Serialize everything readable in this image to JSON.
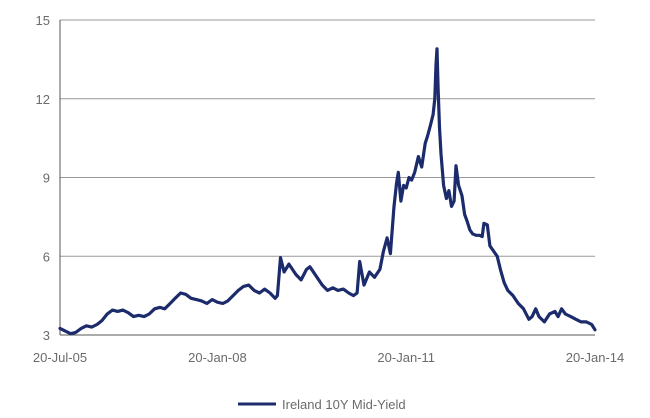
{
  "chart_data": {
    "type": "line",
    "title": "",
    "xlabel": "",
    "ylabel": "",
    "xlim": [
      "2005-07-20",
      "2014-01-20"
    ],
    "ylim": [
      3,
      15
    ],
    "yticks": [
      3,
      6,
      9,
      12,
      15
    ],
    "y_tick_labels": [
      "3",
      "6",
      "9",
      "12",
      "15"
    ],
    "x_tick_labels": [
      {
        "date": "2005-07-20",
        "label": "20-Jul-05"
      },
      {
        "date": "2008-01-20",
        "label": "20-Jan-08"
      },
      {
        "date": "2011-01-20",
        "label": "20-Jan-11"
      },
      {
        "date": "2014-01-20",
        "label": "20-Jan-14"
      }
    ],
    "grid": "horizontal",
    "legend": "bottom",
    "series": [
      {
        "name": "Ireland 10Y Mid-Yield",
        "color": "#1c2b6b",
        "points": [
          [
            "2005-07-20",
            3.25
          ],
          [
            "2005-08-20",
            3.15
          ],
          [
            "2005-09-20",
            3.05
          ],
          [
            "2005-10-20",
            3.1
          ],
          [
            "2005-11-20",
            3.25
          ],
          [
            "2005-12-20",
            3.35
          ],
          [
            "2006-01-20",
            3.3
          ],
          [
            "2006-02-20",
            3.4
          ],
          [
            "2006-03-20",
            3.55
          ],
          [
            "2006-04-20",
            3.8
          ],
          [
            "2006-05-20",
            3.95
          ],
          [
            "2006-06-20",
            3.9
          ],
          [
            "2006-07-20",
            3.95
          ],
          [
            "2006-08-20",
            3.85
          ],
          [
            "2006-09-20",
            3.7
          ],
          [
            "2006-10-20",
            3.75
          ],
          [
            "2006-11-20",
            3.7
          ],
          [
            "2006-12-20",
            3.8
          ],
          [
            "2007-01-20",
            4.0
          ],
          [
            "2007-02-20",
            4.05
          ],
          [
            "2007-03-20",
            4.0
          ],
          [
            "2007-04-20",
            4.2
          ],
          [
            "2007-05-20",
            4.4
          ],
          [
            "2007-06-20",
            4.6
          ],
          [
            "2007-07-20",
            4.55
          ],
          [
            "2007-08-20",
            4.4
          ],
          [
            "2007-09-20",
            4.35
          ],
          [
            "2007-10-20",
            4.3
          ],
          [
            "2007-11-20",
            4.2
          ],
          [
            "2007-12-20",
            4.35
          ],
          [
            "2008-01-20",
            4.25
          ],
          [
            "2008-02-20",
            4.2
          ],
          [
            "2008-03-20",
            4.3
          ],
          [
            "2008-04-20",
            4.5
          ],
          [
            "2008-05-20",
            4.7
          ],
          [
            "2008-06-20",
            4.85
          ],
          [
            "2008-07-20",
            4.9
          ],
          [
            "2008-08-20",
            4.7
          ],
          [
            "2008-09-20",
            4.6
          ],
          [
            "2008-10-20",
            4.75
          ],
          [
            "2008-11-20",
            4.6
          ],
          [
            "2008-12-20",
            4.4
          ],
          [
            "2009-01-02",
            4.5
          ],
          [
            "2009-01-20",
            5.95
          ],
          [
            "2009-02-10",
            5.4
          ],
          [
            "2009-03-10",
            5.7
          ],
          [
            "2009-04-20",
            5.3
          ],
          [
            "2009-05-20",
            5.1
          ],
          [
            "2009-06-20",
            5.5
          ],
          [
            "2009-07-10",
            5.6
          ],
          [
            "2009-08-20",
            5.2
          ],
          [
            "2009-09-20",
            4.9
          ],
          [
            "2009-10-20",
            4.7
          ],
          [
            "2009-11-20",
            4.8
          ],
          [
            "2009-12-20",
            4.7
          ],
          [
            "2010-01-20",
            4.75
          ],
          [
            "2010-02-20",
            4.6
          ],
          [
            "2010-03-20",
            4.5
          ],
          [
            "2010-04-10",
            4.6
          ],
          [
            "2010-04-25",
            5.8
          ],
          [
            "2010-05-20",
            4.9
          ],
          [
            "2010-06-20",
            5.4
          ],
          [
            "2010-07-20",
            5.2
          ],
          [
            "2010-08-20",
            5.5
          ],
          [
            "2010-09-10",
            6.2
          ],
          [
            "2010-10-01",
            6.7
          ],
          [
            "2010-10-20",
            6.1
          ],
          [
            "2010-11-10",
            7.9
          ],
          [
            "2010-11-25",
            8.8
          ],
          [
            "2010-12-05",
            9.2
          ],
          [
            "2010-12-20",
            8.1
          ],
          [
            "2011-01-05",
            8.7
          ],
          [
            "2011-01-20",
            8.6
          ],
          [
            "2011-02-05",
            9.0
          ],
          [
            "2011-02-20",
            8.9
          ],
          [
            "2011-03-10",
            9.2
          ],
          [
            "2011-04-01",
            9.8
          ],
          [
            "2011-04-20",
            9.4
          ],
          [
            "2011-05-10",
            10.3
          ],
          [
            "2011-05-25",
            10.6
          ],
          [
            "2011-06-10",
            11.0
          ],
          [
            "2011-06-25",
            11.4
          ],
          [
            "2011-07-05",
            12.0
          ],
          [
            "2011-07-12",
            13.3
          ],
          [
            "2011-07-18",
            13.9
          ],
          [
            "2011-07-24",
            12.4
          ],
          [
            "2011-08-01",
            10.9
          ],
          [
            "2011-08-10",
            9.9
          ],
          [
            "2011-08-25",
            8.7
          ],
          [
            "2011-09-10",
            8.2
          ],
          [
            "2011-09-25",
            8.5
          ],
          [
            "2011-10-10",
            7.9
          ],
          [
            "2011-10-25",
            8.1
          ],
          [
            "2011-11-05",
            9.45
          ],
          [
            "2011-11-20",
            8.7
          ],
          [
            "2011-12-10",
            8.3
          ],
          [
            "2011-12-25",
            7.6
          ],
          [
            "2012-01-10",
            7.3
          ],
          [
            "2012-01-25",
            7.0
          ],
          [
            "2012-02-10",
            6.85
          ],
          [
            "2012-03-01",
            6.8
          ],
          [
            "2012-03-20",
            6.8
          ],
          [
            "2012-04-05",
            6.75
          ],
          [
            "2012-04-15",
            7.25
          ],
          [
            "2012-05-05",
            7.2
          ],
          [
            "2012-05-20",
            6.4
          ],
          [
            "2012-06-10",
            6.2
          ],
          [
            "2012-07-01",
            6.0
          ],
          [
            "2012-07-20",
            5.5
          ],
          [
            "2012-08-10",
            5.0
          ],
          [
            "2012-09-01",
            4.7
          ],
          [
            "2012-10-01",
            4.5
          ],
          [
            "2012-11-01",
            4.2
          ],
          [
            "2012-12-01",
            4.0
          ],
          [
            "2013-01-01",
            3.6
          ],
          [
            "2013-01-20",
            3.7
          ],
          [
            "2013-02-10",
            4.0
          ],
          [
            "2013-03-01",
            3.7
          ],
          [
            "2013-04-01",
            3.5
          ],
          [
            "2013-05-01",
            3.8
          ],
          [
            "2013-06-01",
            3.9
          ],
          [
            "2013-06-20",
            3.7
          ],
          [
            "2013-07-10",
            4.0
          ],
          [
            "2013-08-01",
            3.8
          ],
          [
            "2013-09-01",
            3.7
          ],
          [
            "2013-10-01",
            3.6
          ],
          [
            "2013-11-01",
            3.5
          ],
          [
            "2013-12-01",
            3.5
          ],
          [
            "2014-01-01",
            3.4
          ],
          [
            "2014-01-20",
            3.2
          ]
        ]
      }
    ]
  }
}
